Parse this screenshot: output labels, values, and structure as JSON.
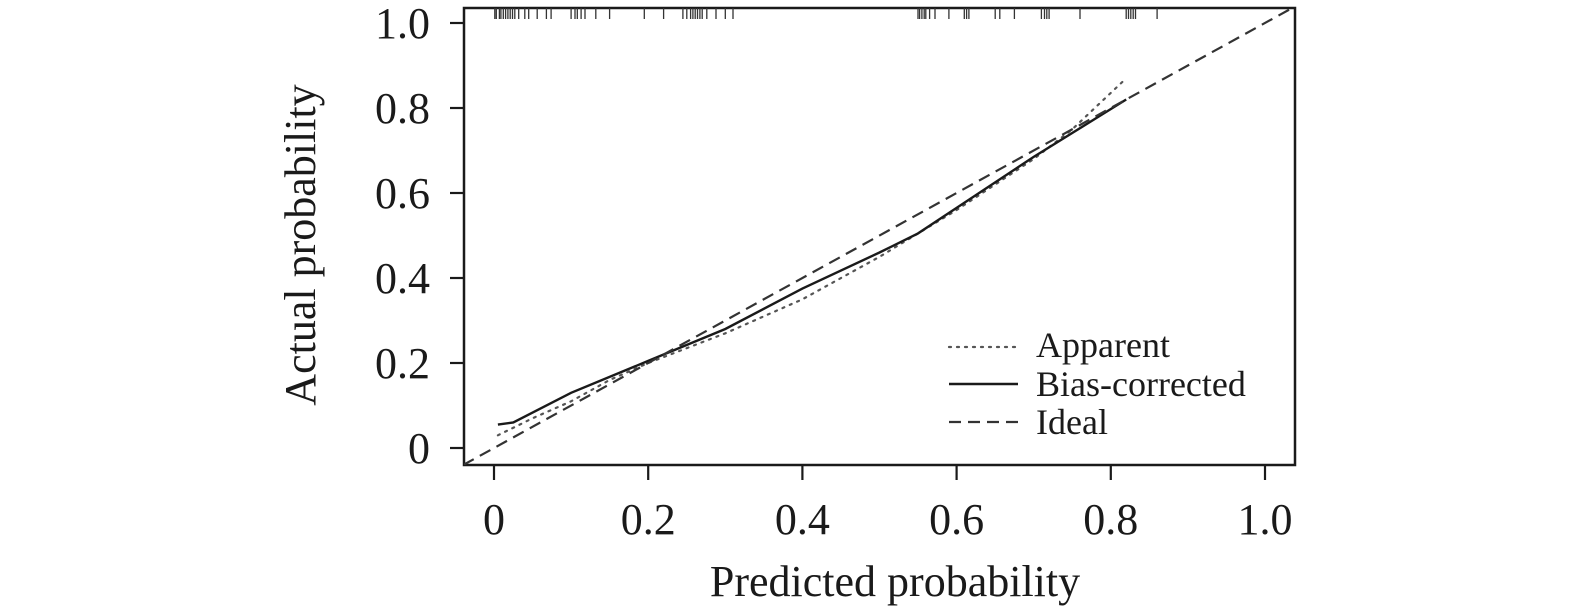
{
  "chart_data": {
    "type": "line",
    "title": "",
    "xlabel": "Predicted probability",
    "ylabel": "Actual probability",
    "xlim": [
      -0.04,
      1.04
    ],
    "ylim": [
      -0.04,
      1.03
    ],
    "x_ticks": [
      0,
      0.2,
      0.4,
      0.6,
      0.8,
      1.0
    ],
    "x_tick_labels": [
      "0",
      "0.2",
      "0.4",
      "0.6",
      "0.8",
      "1.0"
    ],
    "y_ticks": [
      0,
      0.2,
      0.4,
      0.6,
      0.8,
      1.0
    ],
    "y_tick_labels": [
      "0",
      "0.2",
      "0.4",
      "0.6",
      "0.8",
      "1.0"
    ],
    "grid": false,
    "legend_position": "bottom-right",
    "series": [
      {
        "name": "Apparent",
        "style": "dotted",
        "color": "#555555",
        "x": [
          0.005,
          0.05,
          0.1,
          0.15,
          0.2,
          0.3,
          0.4,
          0.5,
          0.6,
          0.7,
          0.75,
          0.82
        ],
        "y": [
          0.03,
          0.07,
          0.11,
          0.16,
          0.2,
          0.27,
          0.35,
          0.45,
          0.56,
          0.68,
          0.75,
          0.87
        ]
      },
      {
        "name": "Bias-corrected",
        "style": "solid",
        "color": "#1a1a1a",
        "x": [
          0.005,
          0.025,
          0.1,
          0.2,
          0.3,
          0.4,
          0.5,
          0.55,
          0.6,
          0.7,
          0.82
        ],
        "y": [
          0.055,
          0.06,
          0.13,
          0.205,
          0.28,
          0.375,
          0.46,
          0.505,
          0.565,
          0.685,
          0.82
        ]
      },
      {
        "name": "Ideal",
        "style": "dashed",
        "color": "#333333",
        "x": [
          -0.04,
          1.04
        ],
        "y": [
          -0.04,
          1.04
        ]
      }
    ],
    "rug_top": [
      0.001,
      0.003,
      0.007,
      0.009,
      0.012,
      0.015,
      0.018,
      0.021,
      0.024,
      0.027,
      0.032,
      0.04,
      0.045,
      0.056,
      0.068,
      0.074,
      0.1,
      0.105,
      0.108,
      0.113,
      0.118,
      0.132,
      0.15,
      0.195,
      0.22,
      0.245,
      0.25,
      0.255,
      0.258,
      0.261,
      0.264,
      0.267,
      0.27,
      0.276,
      0.288,
      0.3,
      0.31,
      0.55,
      0.552,
      0.555,
      0.558,
      0.56,
      0.565,
      0.572,
      0.59,
      0.61,
      0.613,
      0.616,
      0.65,
      0.656,
      0.675,
      0.71,
      0.714,
      0.717,
      0.72,
      0.76,
      0.82,
      0.823,
      0.826,
      0.829,
      0.832,
      0.86
    ]
  }
}
